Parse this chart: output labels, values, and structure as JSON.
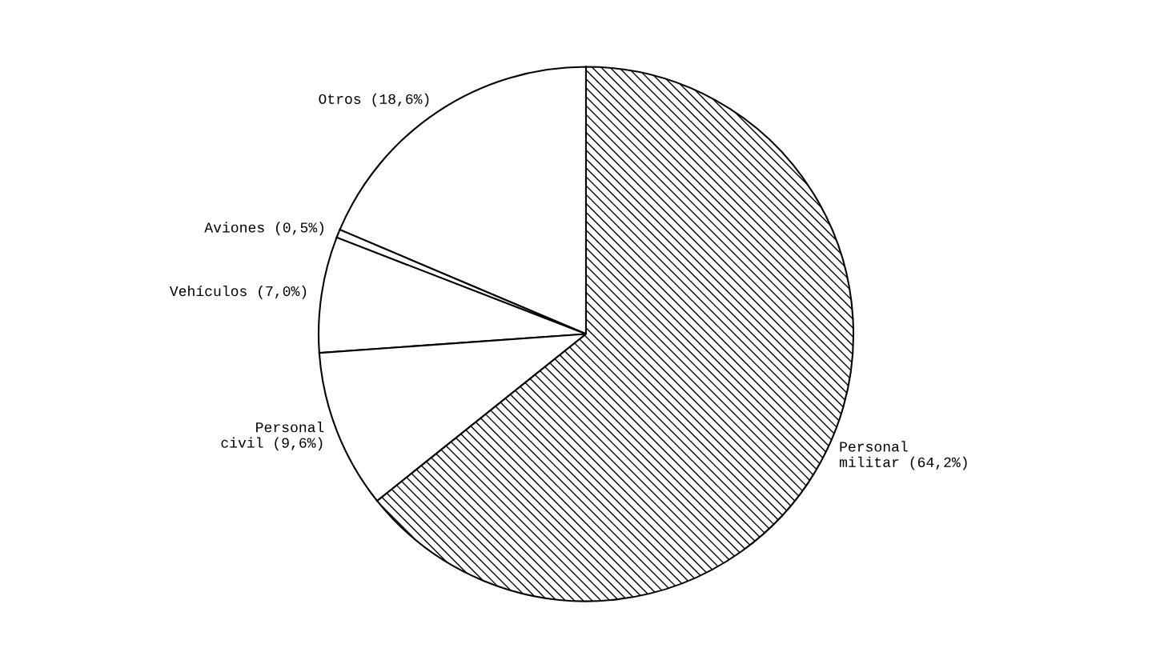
{
  "chart_data": {
    "type": "pie",
    "categories": [
      "Otros (18,6%)",
      "Aviones (0,5%)",
      "Vehículos (7,0%)",
      "Personal\ncivil (9,6%)",
      "Personal\nmilitar (64,2%)"
    ],
    "values": [
      18.6,
      0.5,
      7.0,
      9.6,
      64.2
    ],
    "colors": [
      "#ffffff",
      "#ffffff",
      "#ffffff",
      "#ffffff",
      "#000000"
    ]
  }
}
